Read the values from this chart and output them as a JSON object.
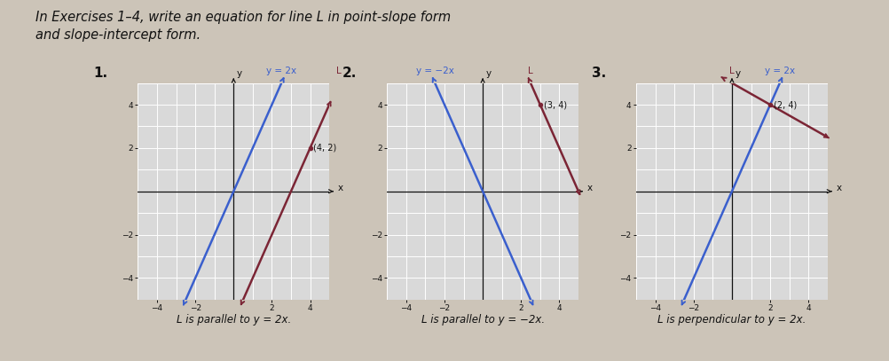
{
  "title_text": "In Exercises 1–4, write an equation for line L in point-slope form\nand slope-intercept form.",
  "graphs": [
    {
      "number": "1.",
      "line1_label": "y = 2x",
      "line2_label": "L",
      "line1_slope": 2,
      "line1_intercept": 0,
      "line2_slope": 2,
      "line2_intercept": -6,
      "point": [
        4,
        2
      ],
      "point_label": "(4, 2)",
      "caption": "L is parallel to y = 2x.",
      "line1_color": "#3a5fcd",
      "line2_color": "#7b2535",
      "xlim": [
        -5,
        5
      ],
      "ylim": [
        -5,
        5
      ]
    },
    {
      "number": "2.",
      "line1_label": "y = −2x",
      "line2_label": "L",
      "line1_slope": -2,
      "line1_intercept": 0,
      "line2_slope": -2,
      "line2_intercept": 10,
      "point": [
        3,
        4
      ],
      "point_label": "(3, 4)",
      "caption": "L is parallel to y = −2x.",
      "line1_color": "#3a5fcd",
      "line2_color": "#7b2535",
      "xlim": [
        -5,
        5
      ],
      "ylim": [
        -5,
        5
      ]
    },
    {
      "number": "3.",
      "line1_label": "y = 2x",
      "line2_label": "L",
      "line1_slope": 2,
      "line1_intercept": 0,
      "line2_slope": -0.5,
      "line2_intercept": 5,
      "point": [
        2,
        4
      ],
      "point_label": "(2, 4)",
      "caption": "L is perpendicular to y = 2x.",
      "line1_color": "#3a5fcd",
      "line2_color": "#7b2535",
      "xlim": [
        -5,
        5
      ],
      "ylim": [
        -5,
        5
      ]
    }
  ],
  "bg_color": "#d9d9d9",
  "page_bg": "#ccc4b8",
  "grid_color": "#ffffff",
  "axis_color": "#111111",
  "text_color": "#111111",
  "font_size_title": 10.5,
  "font_size_labels": 7.5,
  "font_size_caption": 8.5,
  "font_size_number": 11,
  "font_size_point": 7,
  "font_size_tick": 6.5
}
